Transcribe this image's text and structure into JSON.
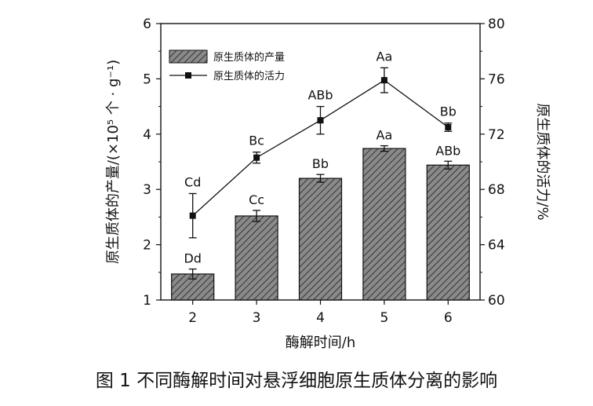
{
  "chart_data": {
    "type": "bar",
    "categories": [
      "2",
      "3",
      "4",
      "5",
      "6"
    ],
    "xlabel": "酶解时间/h",
    "ylabel_left": "原生质体的产量/(×10⁵ 个 · g⁻¹)",
    "ylabel_right": "原生质体的活力/%",
    "ylim_left": [
      1,
      6
    ],
    "yticks_left": [
      1,
      2,
      3,
      4,
      5,
      6
    ],
    "ylim_right": [
      60,
      80
    ],
    "yticks_right": [
      60,
      64,
      68,
      72,
      76,
      80
    ],
    "grid": false,
    "legend_position": "top-left",
    "series": [
      {
        "name": "原生质体的产量",
        "type": "bar",
        "axis": "left",
        "values": [
          1.47,
          2.52,
          3.2,
          3.74,
          3.44
        ],
        "errors": [
          0.09,
          0.1,
          0.07,
          0.05,
          0.07
        ],
        "labels": [
          "Dd",
          "Cc",
          "Bb",
          "Aa",
          "ABb"
        ]
      },
      {
        "name": "原生质体的活力",
        "type": "line",
        "axis": "right",
        "values": [
          66.1,
          70.3,
          73.0,
          75.9,
          72.5
        ],
        "errors": [
          1.6,
          0.4,
          1.0,
          0.9,
          0.3
        ],
        "labels": [
          "Cd",
          "Bc",
          "ABb",
          "Aa",
          "Bb"
        ]
      }
    ],
    "bar_fill_color": "#707070",
    "line_color": "#111111"
  },
  "caption": "图 1    不同酶解时间对悬浮细胞原生质体分离的影响"
}
